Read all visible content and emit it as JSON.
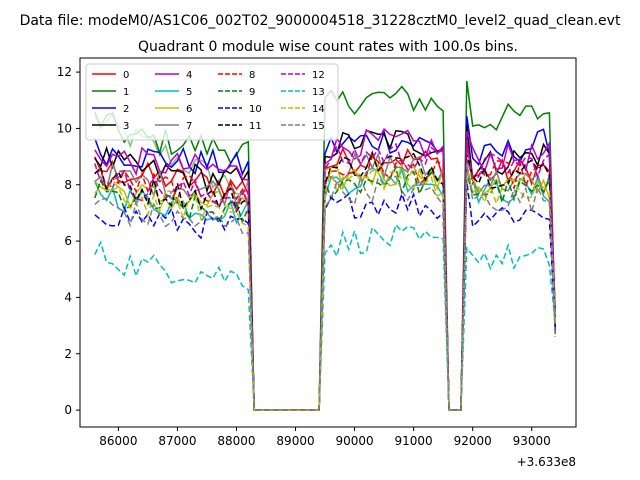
{
  "suptitle": "Data file: modeM0/AS1C06_002T02_9000004518_31228cztM0_level2_quad_clean.evt",
  "chart_data": {
    "type": "line",
    "title": "Quadrant 0 module wise count rates with 100.0s bins.",
    "xlabel": "",
    "ylabel": "",
    "x_offset_label": "+3.633e8",
    "xlim": [
      85350,
      93750
    ],
    "ylim": [
      -0.6,
      12.5
    ],
    "xticks": [
      86000,
      87000,
      88000,
      89000,
      90000,
      91000,
      92000,
      93000
    ],
    "xtick_labels": [
      "86000",
      "87000",
      "88000",
      "89000",
      "90000",
      "91000",
      "92000",
      "93000"
    ],
    "yticks": [
      0,
      2,
      4,
      6,
      8,
      10,
      12
    ],
    "ytick_labels": [
      "0",
      "2",
      "4",
      "6",
      "8",
      "10",
      "12"
    ],
    "legend_location": "upper-left",
    "gap_segments": [
      {
        "drop_start": 88200,
        "zero_start": 88300,
        "zero_end": 89400,
        "rise_end": 89500
      },
      {
        "drop_start": 91500,
        "zero_start": 91600,
        "zero_end": 91800,
        "rise_end": 91900
      }
    ],
    "segment_ranges": [
      [
        85600,
        88200
      ],
      [
        89500,
        91500
      ],
      [
        91900,
        93400
      ]
    ],
    "series": [
      {
        "name": "0",
        "color": "#ff0000",
        "dash": "solid",
        "levels": [
          8.5,
          8.7,
          8.3,
          8.6
        ]
      },
      {
        "name": "1",
        "color": "#008000",
        "dash": "solid",
        "levels": [
          9.8,
          10.8,
          10.2,
          10.6
        ]
      },
      {
        "name": "2",
        "color": "#0000ff",
        "dash": "solid",
        "levels": [
          9.2,
          9.3,
          8.8,
          9.6
        ]
      },
      {
        "name": "3",
        "color": "#000000",
        "dash": "solid",
        "levels": [
          8.7,
          9.3,
          8.6,
          9.2
        ]
      },
      {
        "name": "4",
        "color": "#bf00bf",
        "dash": "solid",
        "levels": [
          9.0,
          9.2,
          8.9,
          9.0
        ]
      },
      {
        "name": "5",
        "color": "#00bfbf",
        "dash": "solid",
        "levels": [
          7.6,
          8.0,
          7.8,
          7.8
        ]
      },
      {
        "name": "6",
        "color": "#bfbf00",
        "dash": "solid",
        "levels": [
          7.8,
          8.1,
          8.0,
          7.9
        ]
      },
      {
        "name": "7",
        "color": "#808080",
        "dash": "solid",
        "levels": [
          8.3,
          8.4,
          8.2,
          8.0
        ]
      },
      {
        "name": "8",
        "color": "#ff0000",
        "dash": "dashed",
        "levels": [
          8.2,
          8.3,
          8.4,
          8.3
        ]
      },
      {
        "name": "9",
        "color": "#008000",
        "dash": "dashed",
        "levels": [
          7.5,
          7.9,
          7.8,
          7.7
        ]
      },
      {
        "name": "10",
        "color": "#0000ff",
        "dash": "dashed",
        "levels": [
          7.0,
          7.1,
          7.0,
          7.0
        ]
      },
      {
        "name": "11",
        "color": "#000000",
        "dash": "dashed",
        "levels": [
          8.0,
          8.5,
          8.3,
          8.6
        ]
      },
      {
        "name": "12",
        "color": "#bf00bf",
        "dash": "dashed",
        "levels": [
          8.1,
          8.8,
          8.6,
          8.8
        ]
      },
      {
        "name": "13",
        "color": "#00bfbf",
        "dash": "dashed",
        "levels": [
          5.3,
          5.8,
          5.5,
          5.3
        ]
      },
      {
        "name": "14",
        "color": "#bfbf00",
        "dash": "dashed",
        "levels": [
          7.6,
          8.0,
          7.9,
          7.7
        ]
      },
      {
        "name": "15",
        "color": "#808080",
        "dash": "dashed",
        "levels": [
          7.1,
          7.6,
          7.5,
          7.5
        ]
      }
    ],
    "extra_series": {
      "name": "",
      "color": "#7fbf7f",
      "dash": "solid",
      "level": 10.3
    }
  }
}
